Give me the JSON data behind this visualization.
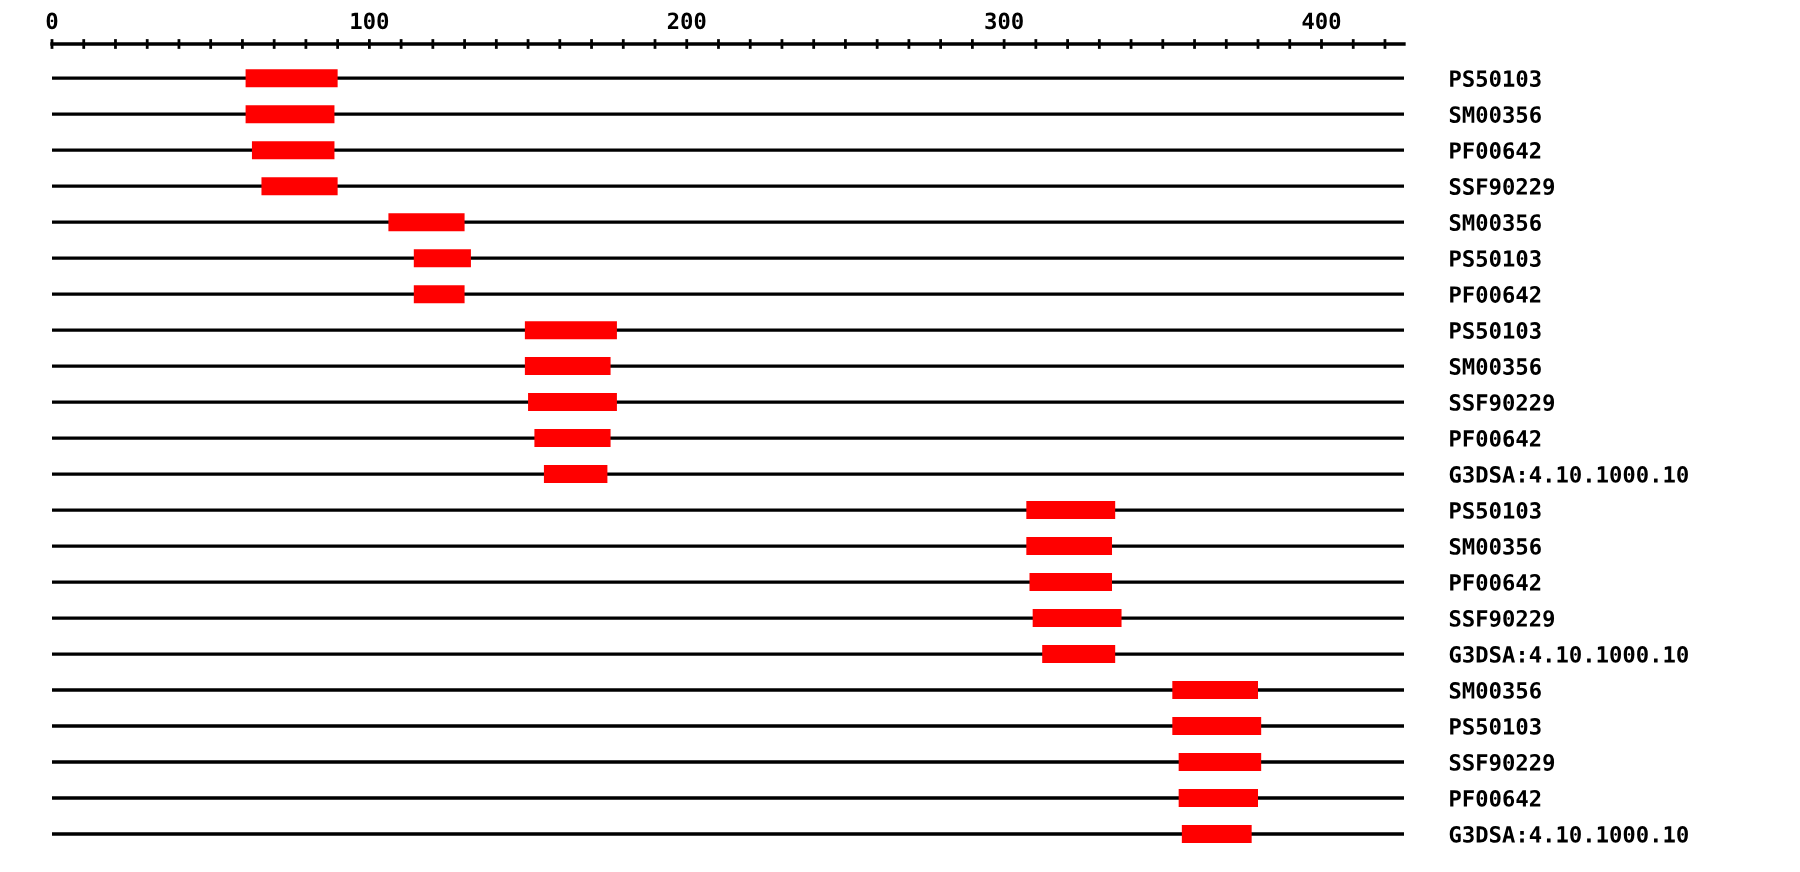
{
  "chart_data": {
    "type": "bar",
    "orientation": "horizontal",
    "color": "#ff0000",
    "grid": "y",
    "categories": [
      "PS50103",
      "SM00356",
      "PF00642",
      "SSF90229",
      "SM00356",
      "PS50103",
      "PF00642",
      "PS50103",
      "SM00356",
      "SSF90229",
      "PF00642",
      "G3DSA:4.10.1000.10",
      "PS50103",
      "SM00356",
      "PF00642",
      "SSF90229",
      "G3DSA:4.10.1000.10",
      "SM00356",
      "PS50103",
      "SSF90229",
      "PF00642",
      "G3DSA:4.10.1000.10"
    ],
    "base": [
      61,
      61,
      63,
      66,
      106,
      114,
      114,
      149,
      149,
      150,
      152,
      155,
      307,
      307,
      308,
      309,
      312,
      353,
      353,
      355,
      355,
      356
    ],
    "values": [
      29,
      28,
      26,
      24,
      24,
      18,
      16,
      29,
      27,
      28,
      24,
      20,
      28,
      27,
      26,
      28,
      23,
      27,
      28,
      26,
      25,
      22
    ],
    "xlim": [
      0,
      426
    ],
    "xticks": [
      0,
      {
        "value": 10,
        "label": null
      },
      {
        "value": 20,
        "label": null
      },
      {
        "value": 30,
        "label": null
      },
      {
        "value": 40,
        "label": null
      },
      {
        "value": 50,
        "label": null
      },
      {
        "value": 60,
        "label": null
      },
      {
        "value": 70,
        "label": null
      },
      {
        "value": 80,
        "label": null
      },
      {
        "value": 90,
        "label": null
      },
      100,
      {
        "value": 110,
        "label": null
      },
      {
        "value": 120,
        "label": null
      },
      {
        "value": 130,
        "label": null
      },
      {
        "value": 140,
        "label": null
      },
      {
        "value": 150,
        "label": null
      },
      {
        "value": 160,
        "label": null
      },
      {
        "value": 170,
        "label": null
      },
      {
        "value": 180,
        "label": null
      },
      {
        "value": 190,
        "label": null
      },
      200,
      {
        "value": 210,
        "label": null
      },
      {
        "value": 220,
        "label": null
      },
      {
        "value": 230,
        "label": null
      },
      {
        "value": 240,
        "label": null
      },
      {
        "value": 250,
        "label": null
      },
      {
        "value": 260,
        "label": null
      },
      {
        "value": 270,
        "label": null
      },
      {
        "value": 280,
        "label": null
      },
      {
        "value": 290,
        "label": null
      },
      300,
      {
        "value": 310,
        "label": null
      },
      {
        "value": 320,
        "label": null
      },
      {
        "value": 330,
        "label": null
      },
      {
        "value": 340,
        "label": null
      },
      {
        "value": 350,
        "label": null
      },
      {
        "value": 360,
        "label": null
      },
      {
        "value": 370,
        "label": null
      },
      {
        "value": 380,
        "label": null
      },
      {
        "value": 390,
        "label": null
      },
      400,
      {
        "value": 410,
        "label": null
      },
      {
        "value": 420,
        "label": null
      }
    ]
  }
}
